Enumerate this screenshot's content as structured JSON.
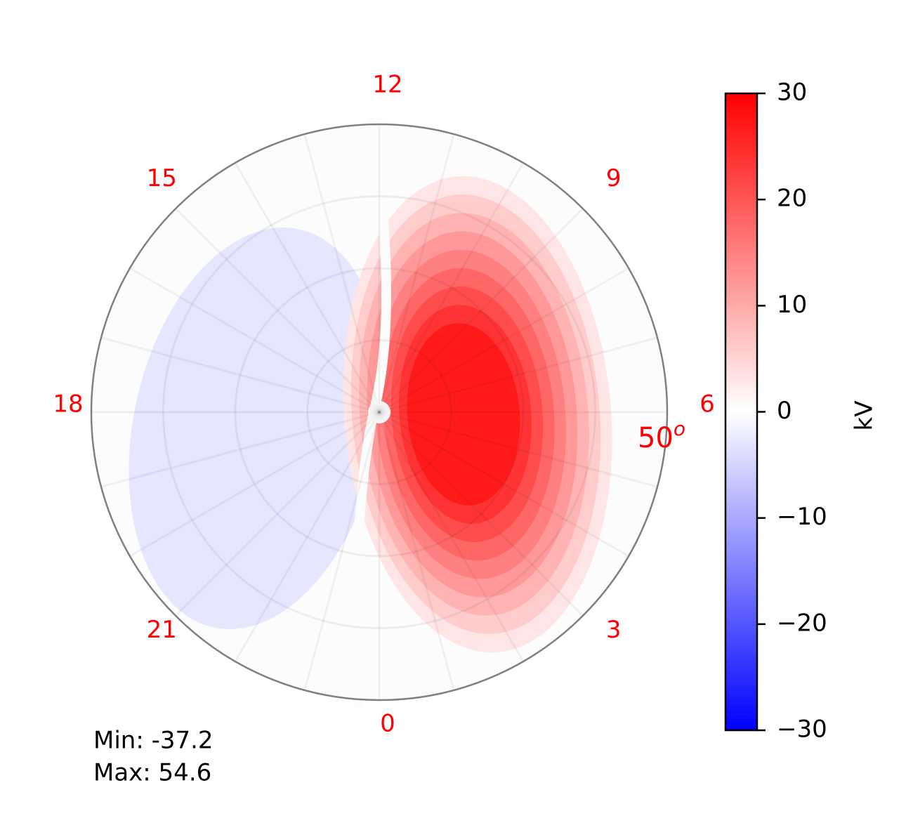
{
  "chart_data": {
    "type": "polar_contour",
    "hours": [
      12,
      15,
      18,
      21,
      0,
      3,
      6,
      9
    ],
    "hour_color": "#ff0000",
    "lat_label": {
      "text": "50",
      "sup": "o"
    },
    "levels": [
      -27,
      -24,
      -21,
      -18,
      -15,
      -12,
      -9,
      -6,
      -3,
      3,
      6,
      9,
      12,
      15,
      18,
      21,
      24,
      27
    ],
    "cmap": [
      "#0000ff",
      "#ffffff",
      "#ff0000"
    ],
    "clim": [
      -30,
      30
    ],
    "cticks": [
      {
        "value": -30,
        "label": "−30"
      },
      {
        "value": -20,
        "label": "−20"
      },
      {
        "value": -10,
        "label": "−10"
      },
      0,
      10,
      20,
      30
    ],
    "colorbar_label": "kV",
    "annotations": [
      "Min: -37.2",
      "Max: 54.6"
    ]
  }
}
